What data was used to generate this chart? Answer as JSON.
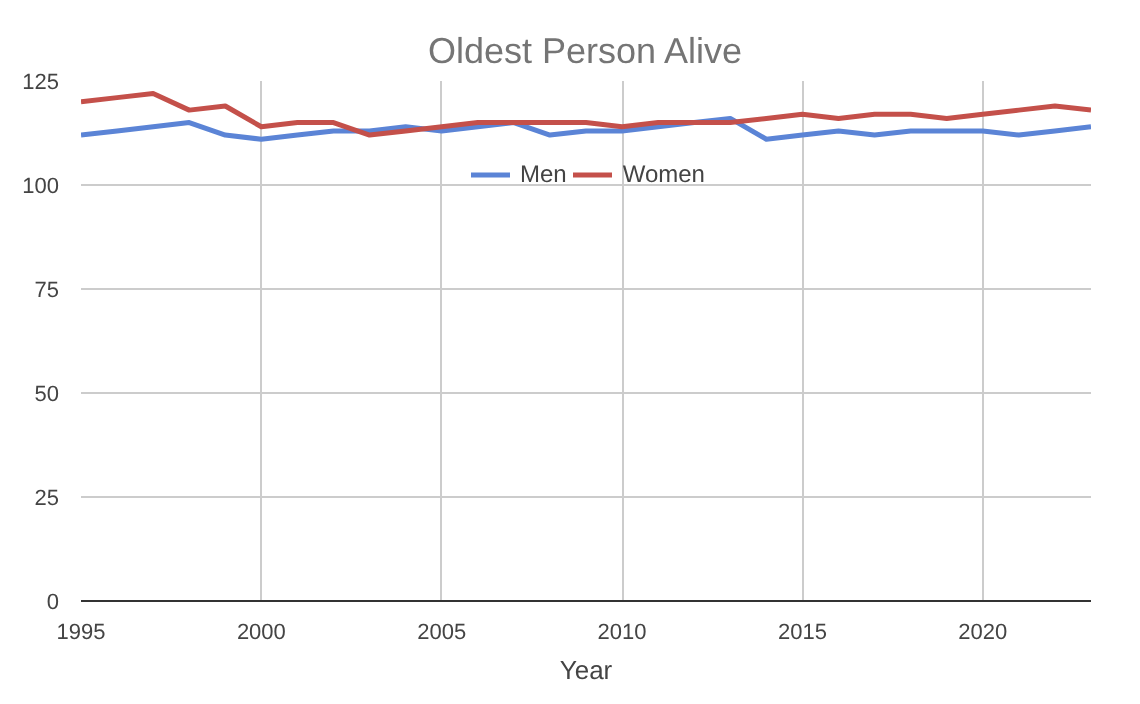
{
  "chart_data": {
    "type": "line",
    "title": "Oldest Person Alive",
    "xlabel": "Year",
    "x": [
      1995,
      1996,
      1997,
      1998,
      1999,
      2000,
      2001,
      2002,
      2003,
      2004,
      2005,
      2006,
      2007,
      2008,
      2009,
      2010,
      2011,
      2012,
      2013,
      2014,
      2015,
      2016,
      2017,
      2018,
      2019,
      2020,
      2021,
      2022,
      2023
    ],
    "series": [
      {
        "name": "Men",
        "color": "#5b84d6",
        "values": [
          112,
          113,
          114,
          115,
          112,
          111,
          112,
          113,
          113,
          114,
          113,
          114,
          115,
          112,
          113,
          113,
          114,
          115,
          116,
          111,
          112,
          113,
          112,
          113,
          113,
          113,
          112,
          113,
          114
        ]
      },
      {
        "name": "Women",
        "color": "#c4504a",
        "values": [
          120,
          121,
          122,
          118,
          119,
          114,
          115,
          115,
          112,
          113,
          114,
          115,
          115,
          115,
          115,
          114,
          115,
          115,
          115,
          116,
          117,
          116,
          117,
          117,
          116,
          117,
          118,
          119,
          118
        ]
      }
    ],
    "xlim": [
      1995,
      2023
    ],
    "xticks": [
      1995,
      2000,
      2005,
      2010,
      2015,
      2020
    ],
    "ylim": [
      0,
      125
    ],
    "yticks": [
      0,
      25,
      50,
      75,
      100,
      125
    ],
    "grid": true,
    "legend": "top",
    "marker": "none",
    "line_style": "solid"
  }
}
